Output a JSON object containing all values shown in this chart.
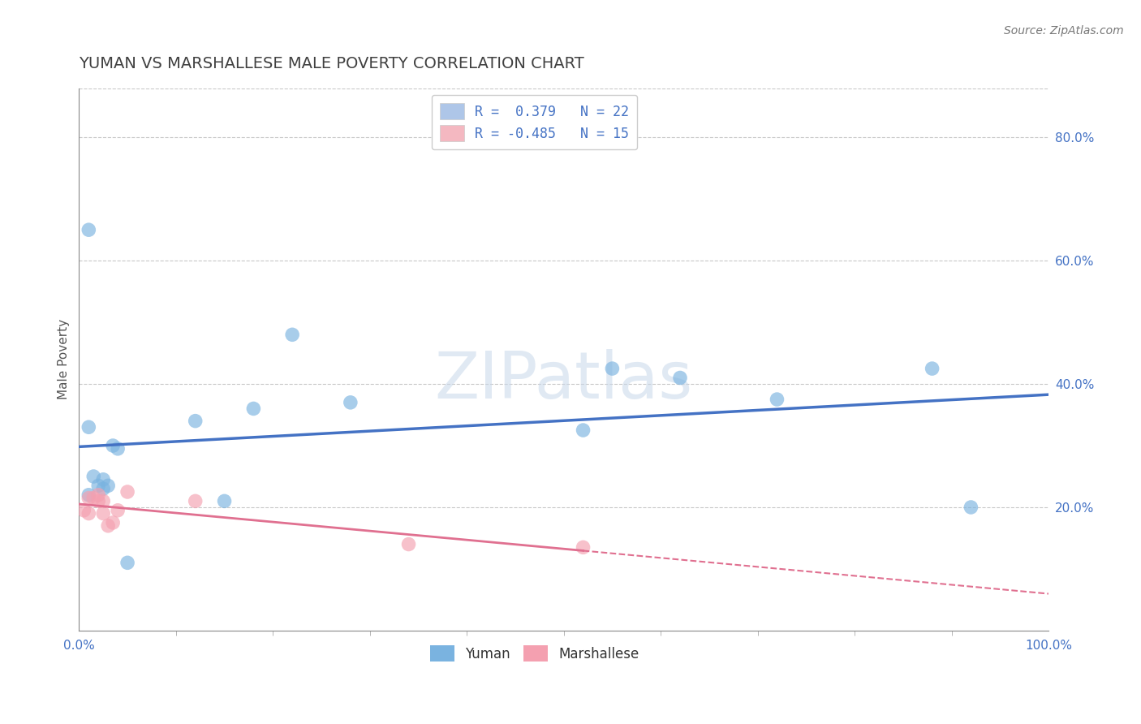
{
  "title": "YUMAN VS MARSHALLESE MALE POVERTY CORRELATION CHART",
  "source": "Source: ZipAtlas.com",
  "ylabel": "Male Poverty",
  "watermark": "ZIPatlas",
  "legend_entries": [
    {
      "label": "R =  0.379   N = 22",
      "color": "#aec6e8"
    },
    {
      "label": "R = -0.485   N = 15",
      "color": "#f4b8c1"
    }
  ],
  "legend_bottom": [
    "Yuman",
    "Marshallese"
  ],
  "yuman_x": [
    0.01,
    0.01,
    0.015,
    0.02,
    0.025,
    0.025,
    0.03,
    0.035,
    0.04,
    0.05,
    0.12,
    0.15,
    0.18,
    0.22,
    0.28,
    0.52,
    0.55,
    0.62,
    0.72,
    0.88,
    0.92,
    0.01
  ],
  "yuman_y": [
    0.65,
    0.33,
    0.25,
    0.235,
    0.245,
    0.23,
    0.235,
    0.3,
    0.295,
    0.11,
    0.34,
    0.21,
    0.36,
    0.48,
    0.37,
    0.325,
    0.425,
    0.41,
    0.375,
    0.425,
    0.2,
    0.22
  ],
  "marshallese_x": [
    0.005,
    0.01,
    0.01,
    0.015,
    0.02,
    0.02,
    0.025,
    0.025,
    0.03,
    0.035,
    0.04,
    0.05,
    0.12,
    0.34,
    0.52
  ],
  "marshallese_y": [
    0.195,
    0.19,
    0.215,
    0.215,
    0.21,
    0.22,
    0.21,
    0.19,
    0.17,
    0.175,
    0.195,
    0.225,
    0.21,
    0.14,
    0.135
  ],
  "yuman_color": "#7ab3e0",
  "marshallese_color": "#f4a0b0",
  "yuman_line_color": "#4472c4",
  "marshallese_line_color": "#e07090",
  "background_color": "#ffffff",
  "plot_bg_color": "#ffffff",
  "grid_color": "#c8c8c8",
  "title_color": "#404040",
  "right_ytick_values": [
    0.2,
    0.4,
    0.6,
    0.8
  ],
  "xlim": [
    0.0,
    1.0
  ],
  "ylim": [
    0.0,
    0.88
  ],
  "xtick_left_label": "0.0%",
  "xtick_right_label": "100.0%",
  "minor_xtick_values": [
    0.1,
    0.2,
    0.3,
    0.4,
    0.5,
    0.6,
    0.7,
    0.8,
    0.9
  ]
}
